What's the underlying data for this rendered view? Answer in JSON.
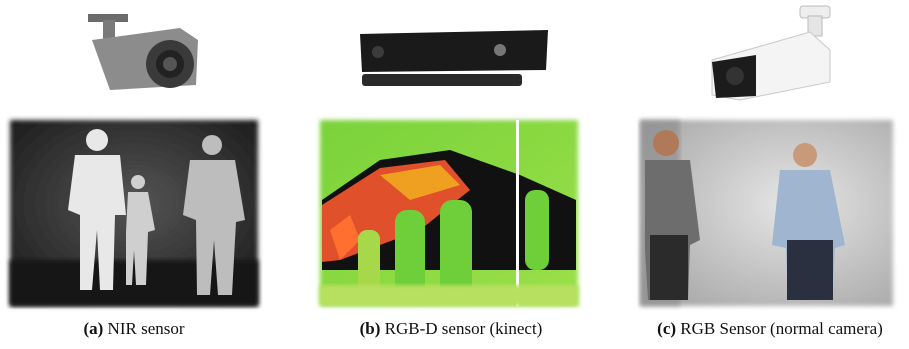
{
  "panels": [
    {
      "label": "(a)",
      "caption": "NIR sensor"
    },
    {
      "label": "(b)",
      "caption": "RGB-D sensor (kinect)"
    },
    {
      "label": "(c)",
      "caption": "RGB Sensor (normal camera)"
    }
  ]
}
